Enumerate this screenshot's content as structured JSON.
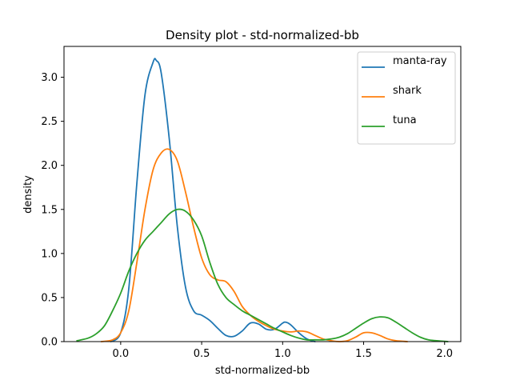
{
  "chart_data": {
    "type": "line",
    "title": "Density plot - std-normalized-bb",
    "xlabel": "std-normalized-bb",
    "ylabel": "density",
    "xlim": [
      -0.35,
      2.1
    ],
    "ylim": [
      0,
      3.35
    ],
    "xticks": [
      0.0,
      0.5,
      1.0,
      1.5,
      2.0
    ],
    "xtick_labels": [
      "0.0",
      "0.5",
      "1.0",
      "1.5",
      "2.0"
    ],
    "yticks": [
      0.0,
      0.5,
      1.0,
      1.5,
      2.0,
      2.5,
      3.0
    ],
    "ytick_labels": [
      "0.0",
      "0.5",
      "1.0",
      "1.5",
      "2.0",
      "2.5",
      "3.0"
    ],
    "grid": false,
    "legend_position": "top-right",
    "series": [
      {
        "name": "manta-ray",
        "color": "#1f77b4",
        "x": [
          -0.06,
          0.0,
          0.05,
          0.1,
          0.15,
          0.2,
          0.22,
          0.25,
          0.3,
          0.35,
          0.4,
          0.45,
          0.5,
          0.55,
          0.6,
          0.65,
          0.7,
          0.75,
          0.8,
          0.85,
          0.9,
          0.95,
          1.0,
          1.02,
          1.05,
          1.1,
          1.15,
          1.2
        ],
        "y": [
          0.0,
          0.1,
          0.6,
          1.8,
          2.8,
          3.17,
          3.19,
          3.05,
          2.3,
          1.3,
          0.62,
          0.35,
          0.3,
          0.24,
          0.15,
          0.07,
          0.06,
          0.12,
          0.21,
          0.2,
          0.14,
          0.14,
          0.21,
          0.22,
          0.19,
          0.1,
          0.03,
          0.0
        ]
      },
      {
        "name": "shark",
        "color": "#ff7f0e",
        "x": [
          -0.12,
          -0.05,
          0.0,
          0.05,
          0.1,
          0.15,
          0.2,
          0.25,
          0.3,
          0.35,
          0.4,
          0.45,
          0.5,
          0.55,
          0.6,
          0.65,
          0.7,
          0.75,
          0.8,
          0.85,
          0.9,
          0.95,
          1.0,
          1.05,
          1.1,
          1.15,
          1.2,
          1.25,
          1.3,
          1.35,
          1.4,
          1.45,
          1.5,
          1.55,
          1.6,
          1.65,
          1.7,
          1.77
        ],
        "y": [
          0.0,
          0.02,
          0.1,
          0.35,
          0.9,
          1.5,
          1.95,
          2.14,
          2.18,
          2.05,
          1.7,
          1.3,
          0.95,
          0.76,
          0.7,
          0.68,
          0.57,
          0.4,
          0.3,
          0.23,
          0.18,
          0.14,
          0.12,
          0.11,
          0.12,
          0.11,
          0.07,
          0.03,
          0.01,
          0.0,
          0.01,
          0.05,
          0.1,
          0.1,
          0.07,
          0.03,
          0.01,
          0.0
        ]
      },
      {
        "name": "tuna",
        "color": "#2ca02c",
        "x": [
          -0.27,
          -0.2,
          -0.15,
          -0.1,
          -0.05,
          0.0,
          0.05,
          0.1,
          0.15,
          0.2,
          0.25,
          0.3,
          0.35,
          0.4,
          0.45,
          0.5,
          0.55,
          0.6,
          0.65,
          0.7,
          0.75,
          0.8,
          0.85,
          0.9,
          0.95,
          1.0,
          1.05,
          1.1,
          1.15,
          1.2,
          1.25,
          1.3,
          1.35,
          1.4,
          1.45,
          1.5,
          1.55,
          1.6,
          1.65,
          1.7,
          1.75,
          1.8,
          1.85,
          1.9,
          1.95,
          2.02
        ],
        "y": [
          0.01,
          0.04,
          0.09,
          0.18,
          0.35,
          0.55,
          0.8,
          1.0,
          1.15,
          1.25,
          1.35,
          1.45,
          1.5,
          1.48,
          1.38,
          1.2,
          0.9,
          0.65,
          0.5,
          0.42,
          0.35,
          0.3,
          0.25,
          0.2,
          0.15,
          0.11,
          0.07,
          0.04,
          0.02,
          0.02,
          0.02,
          0.03,
          0.05,
          0.09,
          0.15,
          0.21,
          0.26,
          0.28,
          0.27,
          0.22,
          0.16,
          0.1,
          0.05,
          0.02,
          0.01,
          0.0
        ]
      }
    ]
  }
}
